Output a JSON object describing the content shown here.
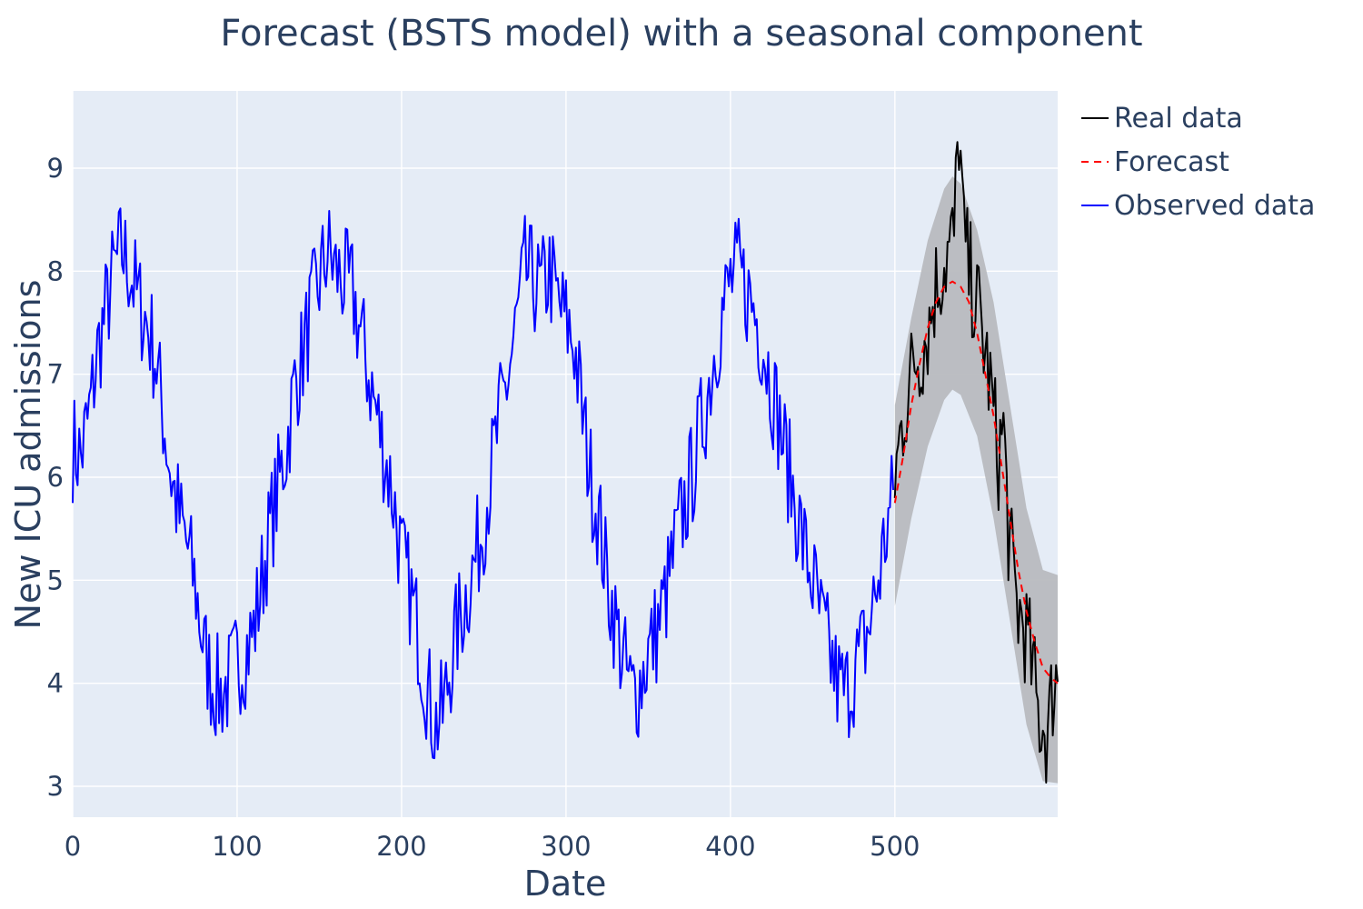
{
  "chart_data": {
    "type": "line",
    "title": "Forecast (BSTS model) with a seasonal component",
    "xlabel": "Date",
    "ylabel": "New ICU admissions",
    "xlim": [
      0,
      599
    ],
    "ylim": [
      2.7,
      9.75
    ],
    "x_ticks": [
      0,
      100,
      200,
      300,
      400,
      500
    ],
    "y_ticks": [
      3,
      4,
      5,
      6,
      7,
      8,
      9
    ],
    "grid": true,
    "legend_position": "top-right, outside plot",
    "background_color": "#e5ecf6",
    "observed_range": [
      0,
      499
    ],
    "forecast_range": [
      500,
      599
    ],
    "seasonal_period": 120,
    "series": [
      {
        "name": "Real data",
        "color": "#000000",
        "dash": "solid",
        "points": [
          [
            500,
            6.0
          ],
          [
            503,
            6.35
          ],
          [
            506,
            6.7
          ],
          [
            509,
            6.9
          ],
          [
            512,
            7.15
          ],
          [
            515,
            7.2
          ],
          [
            518,
            7.35
          ],
          [
            521,
            7.5
          ],
          [
            524,
            7.8
          ],
          [
            527,
            7.95
          ],
          [
            530,
            8.1
          ],
          [
            533,
            8.2
          ],
          [
            536,
            8.35
          ],
          [
            539,
            9.4
          ],
          [
            542,
            8.3
          ],
          [
            545,
            8.0
          ],
          [
            548,
            7.8
          ],
          [
            551,
            7.6
          ],
          [
            554,
            7.3
          ],
          [
            557,
            7.0
          ],
          [
            560,
            6.6
          ],
          [
            563,
            6.2
          ],
          [
            566,
            6.5
          ],
          [
            569,
            5.5
          ],
          [
            572,
            5.0
          ],
          [
            575,
            4.7
          ],
          [
            578,
            4.6
          ],
          [
            581,
            4.4
          ],
          [
            584,
            4.1
          ],
          [
            587,
            3.7
          ],
          [
            590,
            3.6
          ],
          [
            593,
            3.5
          ],
          [
            596,
            3.95
          ],
          [
            599,
            4.1
          ]
        ]
      },
      {
        "name": "Forecast",
        "color": "#ff0000",
        "dash": "dashed",
        "points": [
          [
            500,
            5.75
          ],
          [
            505,
            6.2
          ],
          [
            510,
            6.7
          ],
          [
            515,
            7.1
          ],
          [
            520,
            7.45
          ],
          [
            525,
            7.7
          ],
          [
            530,
            7.85
          ],
          [
            535,
            7.9
          ],
          [
            540,
            7.85
          ],
          [
            545,
            7.7
          ],
          [
            550,
            7.4
          ],
          [
            555,
            7.0
          ],
          [
            560,
            6.6
          ],
          [
            565,
            6.1
          ],
          [
            570,
            5.6
          ],
          [
            575,
            5.1
          ],
          [
            580,
            4.7
          ],
          [
            585,
            4.4
          ],
          [
            590,
            4.15
          ],
          [
            595,
            4.05
          ],
          [
            599,
            4.0
          ]
        ]
      },
      {
        "name": "Observed data",
        "color": "#0000ff",
        "dash": "solid",
        "points": [
          [
            0,
            6.3
          ],
          [
            5,
            6.2
          ],
          [
            10,
            6.6
          ],
          [
            15,
            7.2
          ],
          [
            20,
            7.6
          ],
          [
            25,
            8.0
          ],
          [
            30,
            8.2
          ],
          [
            35,
            8.0
          ],
          [
            40,
            7.7
          ],
          [
            45,
            7.5
          ],
          [
            50,
            7.2
          ],
          [
            55,
            6.6
          ],
          [
            60,
            6.0
          ],
          [
            65,
            5.6
          ],
          [
            70,
            5.3
          ],
          [
            75,
            4.9
          ],
          [
            80,
            4.3
          ],
          [
            85,
            4.0
          ],
          [
            90,
            3.9
          ],
          [
            95,
            4.0
          ],
          [
            100,
            4.2
          ],
          [
            105,
            4.3
          ],
          [
            110,
            4.5
          ],
          [
            115,
            5.0
          ],
          [
            120,
            5.5
          ],
          [
            125,
            5.9
          ],
          [
            130,
            6.3
          ],
          [
            135,
            6.9
          ],
          [
            140,
            7.2
          ],
          [
            145,
            7.6
          ],
          [
            150,
            7.9
          ],
          [
            155,
            8.2
          ],
          [
            160,
            8.0
          ],
          [
            165,
            7.9
          ],
          [
            170,
            7.8
          ],
          [
            175,
            7.4
          ],
          [
            180,
            7.0
          ],
          [
            185,
            6.6
          ],
          [
            190,
            6.2
          ],
          [
            195,
            5.8
          ],
          [
            200,
            5.2
          ],
          [
            205,
            4.9
          ],
          [
            210,
            4.5
          ],
          [
            215,
            4.0
          ],
          [
            220,
            3.6
          ],
          [
            225,
            3.7
          ],
          [
            230,
            4.2
          ],
          [
            235,
            4.6
          ],
          [
            240,
            4.9
          ],
          [
            245,
            5.2
          ],
          [
            250,
            5.6
          ],
          [
            255,
            6.1
          ],
          [
            260,
            6.6
          ],
          [
            265,
            7.0
          ],
          [
            270,
            7.5
          ],
          [
            275,
            8.0
          ],
          [
            280,
            7.9
          ],
          [
            285,
            7.8
          ],
          [
            290,
            8.0
          ],
          [
            295,
            7.7
          ],
          [
            300,
            7.5
          ],
          [
            305,
            7.3
          ],
          [
            310,
            6.6
          ],
          [
            315,
            6.0
          ],
          [
            320,
            5.6
          ],
          [
            325,
            5.0
          ],
          [
            330,
            4.6
          ],
          [
            335,
            4.2
          ],
          [
            340,
            3.9
          ],
          [
            345,
            4.0
          ],
          [
            350,
            4.3
          ],
          [
            355,
            4.5
          ],
          [
            360,
            4.8
          ],
          [
            365,
            5.2
          ],
          [
            370,
            5.6
          ],
          [
            375,
            5.9
          ],
          [
            380,
            6.3
          ],
          [
            385,
            6.7
          ],
          [
            390,
            7.2
          ],
          [
            395,
            7.6
          ],
          [
            400,
            7.9
          ],
          [
            405,
            8.0
          ],
          [
            410,
            7.8
          ],
          [
            415,
            7.6
          ],
          [
            420,
            7.3
          ],
          [
            425,
            6.9
          ],
          [
            430,
            6.5
          ],
          [
            435,
            6.1
          ],
          [
            440,
            5.7
          ],
          [
            445,
            5.3
          ],
          [
            450,
            5.0
          ],
          [
            455,
            4.6
          ],
          [
            460,
            4.3
          ],
          [
            465,
            4.0
          ],
          [
            470,
            3.9
          ],
          [
            475,
            4.1
          ],
          [
            480,
            4.3
          ],
          [
            485,
            4.6
          ],
          [
            490,
            5.0
          ],
          [
            495,
            5.5
          ],
          [
            499,
            5.8
          ]
        ]
      }
    ],
    "confidence_band": {
      "color": "#b8babf",
      "upper": [
        [
          500,
          6.7
        ],
        [
          510,
          7.55
        ],
        [
          520,
          8.3
        ],
        [
          530,
          8.8
        ],
        [
          535,
          8.92
        ],
        [
          540,
          8.85
        ],
        [
          550,
          8.4
        ],
        [
          560,
          7.7
        ],
        [
          570,
          6.7
        ],
        [
          580,
          5.7
        ],
        [
          590,
          5.1
        ],
        [
          599,
          5.05
        ]
      ],
      "lower": [
        [
          500,
          4.75
        ],
        [
          510,
          5.6
        ],
        [
          520,
          6.3
        ],
        [
          530,
          6.75
        ],
        [
          535,
          6.85
        ],
        [
          540,
          6.8
        ],
        [
          550,
          6.4
        ],
        [
          560,
          5.6
        ],
        [
          570,
          4.6
        ],
        [
          580,
          3.6
        ],
        [
          590,
          3.05
        ],
        [
          599,
          3.03
        ]
      ]
    }
  }
}
